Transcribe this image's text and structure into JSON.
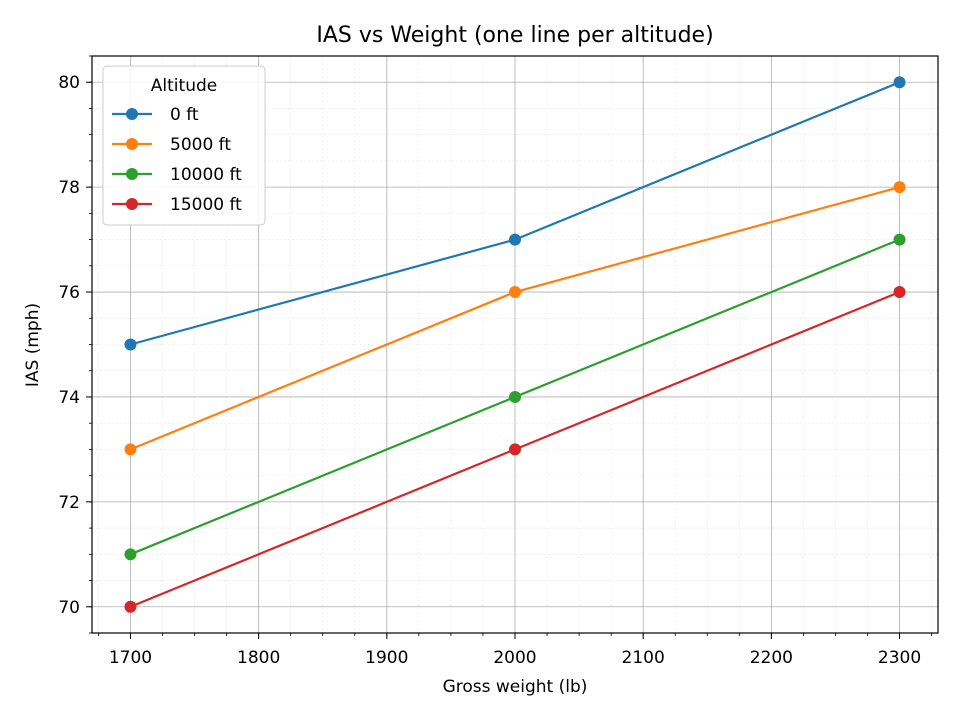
{
  "chart_data": {
    "type": "line",
    "title": "IAS vs Weight (one line per altitude)",
    "xlabel": "Gross weight (lb)",
    "ylabel": "IAS (mph)",
    "x": [
      1700,
      2000,
      2300
    ],
    "xlim": [
      1670,
      2330
    ],
    "ylim": [
      69.5,
      80.5
    ],
    "xticks": [
      1700,
      1800,
      1900,
      2000,
      2100,
      2200,
      2300
    ],
    "yticks": [
      70,
      72,
      74,
      76,
      78,
      80
    ],
    "grid": true,
    "minor_grid": true,
    "legend": {
      "title": "Altitude",
      "placement": "top-left"
    },
    "series": [
      {
        "name": "0 ft",
        "color": "#1f77b4",
        "values": [
          75,
          77,
          80
        ]
      },
      {
        "name": "5000 ft",
        "color": "#ff7f0e",
        "values": [
          73,
          76,
          78
        ]
      },
      {
        "name": "10000 ft",
        "color": "#2ca02c",
        "values": [
          71,
          74,
          77
        ]
      },
      {
        "name": "15000 ft",
        "color": "#d62728",
        "values": [
          70,
          73,
          76
        ]
      }
    ]
  }
}
